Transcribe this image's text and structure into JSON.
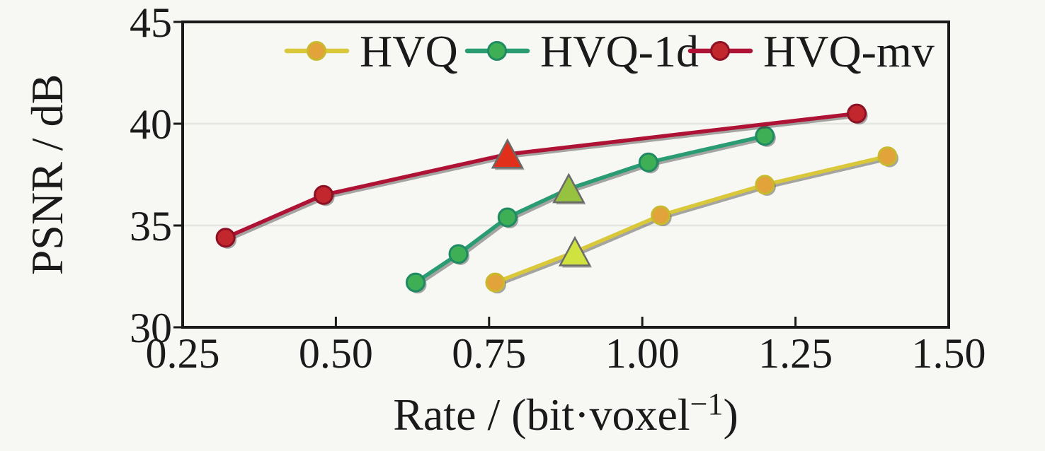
{
  "chart_data": {
    "type": "line",
    "title": "",
    "xlabel": "Rate / (bit·voxel⁻¹)",
    "xlabel_main": "Rate / (bit·voxel",
    "xlabel_sup": "−1",
    "xlabel_close": ")",
    "ylabel": "PSNR / dB",
    "xlim": [
      0.25,
      1.5
    ],
    "ylim": [
      30,
      45
    ],
    "xticks": [
      0.25,
      0.5,
      0.75,
      1.0,
      1.25,
      1.5
    ],
    "xtick_labels": [
      "0.25",
      "0.50",
      "0.75",
      "1.00",
      "1.25",
      "1.50"
    ],
    "yticks": [
      30,
      35,
      40,
      45
    ],
    "ytick_labels": [
      "30",
      "35",
      "40",
      "45"
    ],
    "grid": "horizontal",
    "grid_color": "#e4e4e0",
    "spine_color": "#1a1a1a",
    "shadow_color": "#3f3f3f",
    "legend_position": "top-inside",
    "series": [
      {
        "name": "HVQ",
        "color": "#d9c83a",
        "marker_fill": "#e2a33b",
        "marker_edge": "#c9b92e",
        "triangle_color": "#cfe23f",
        "triangle_index": 1,
        "points": [
          [
            0.76,
            32.2
          ],
          [
            0.89,
            33.7
          ],
          [
            1.03,
            35.5
          ],
          [
            1.2,
            37.0
          ],
          [
            1.4,
            38.4
          ]
        ]
      },
      {
        "name": "HVQ-1d",
        "color": "#2a9c74",
        "marker_fill": "#3faf55",
        "marker_edge": "#1f8a63",
        "triangle_color": "#96c23f",
        "triangle_index": 3,
        "points": [
          [
            0.63,
            32.2
          ],
          [
            0.7,
            33.6
          ],
          [
            0.78,
            35.4
          ],
          [
            0.88,
            36.8
          ],
          [
            1.01,
            38.1
          ],
          [
            1.2,
            39.4
          ]
        ]
      },
      {
        "name": "HVQ-mv",
        "color": "#ae1335",
        "marker_fill": "#c1272d",
        "marker_edge": "#8e1024",
        "triangle_color": "#e0301c",
        "triangle_index": 2,
        "points": [
          [
            0.32,
            34.4
          ],
          [
            0.48,
            36.5
          ],
          [
            0.78,
            38.5
          ],
          [
            1.35,
            40.5
          ]
        ]
      }
    ]
  }
}
